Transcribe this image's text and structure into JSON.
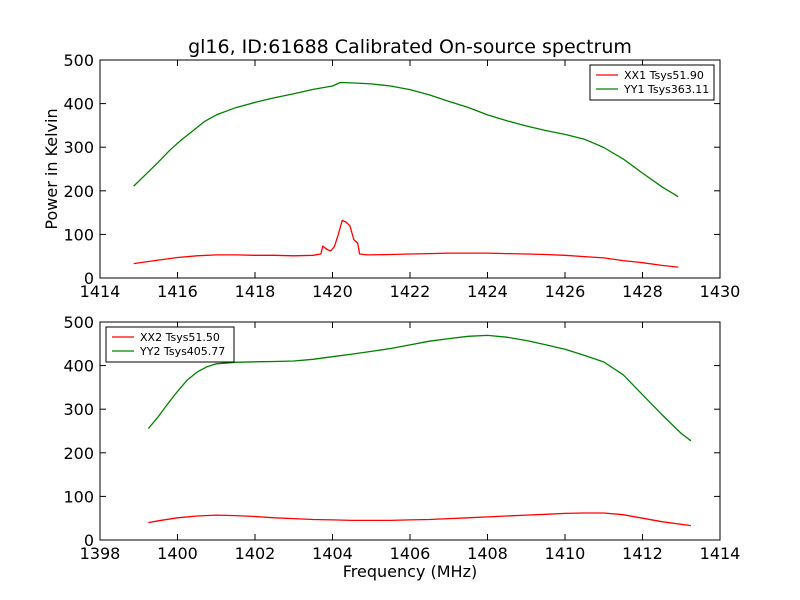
{
  "chart_data": [
    {
      "type": "line",
      "title": "gl16, ID:61688 Calibrated On-source spectrum",
      "xlabel": "",
      "ylabel": "Power in Kelvin",
      "xlim": [
        1414,
        1430
      ],
      "ylim": [
        0,
        500
      ],
      "xticks": [
        1414,
        1416,
        1418,
        1420,
        1422,
        1424,
        1426,
        1428,
        1430
      ],
      "yticks": [
        0,
        100,
        200,
        300,
        400,
        500
      ],
      "grid": false,
      "legend_position": "top-right",
      "series": [
        {
          "name": "XX1 Tsys51.90",
          "color": "#ff0000",
          "x": [
            1414.87,
            1415.5,
            1416.0,
            1416.5,
            1417.0,
            1417.5,
            1418.0,
            1418.5,
            1419.0,
            1419.5,
            1419.7,
            1419.75,
            1419.85,
            1419.95,
            1420.05,
            1420.15,
            1420.25,
            1420.35,
            1420.45,
            1420.55,
            1420.65,
            1420.7,
            1420.9,
            1421.5,
            1422.0,
            1422.5,
            1423.0,
            1423.5,
            1424.0,
            1424.5,
            1425.0,
            1425.5,
            1426.0,
            1426.5,
            1427.0,
            1427.5,
            1428.0,
            1428.5,
            1428.92
          ],
          "y": [
            33,
            41,
            47,
            51,
            53,
            53,
            52,
            52,
            51,
            52,
            55,
            73,
            66,
            62,
            72,
            100,
            132,
            128,
            120,
            88,
            80,
            55,
            53,
            54,
            55,
            56,
            57,
            57,
            57,
            56,
            55,
            54,
            52,
            49,
            46,
            40,
            35,
            29,
            25
          ]
        },
        {
          "name": "YY1 Tsys363.11",
          "color": "#008000",
          "x": [
            1414.87,
            1415.2,
            1415.5,
            1415.8,
            1416.1,
            1416.4,
            1416.7,
            1417.0,
            1417.5,
            1418.0,
            1418.5,
            1419.0,
            1419.5,
            1420.0,
            1420.2,
            1420.5,
            1421.0,
            1421.5,
            1422.0,
            1422.5,
            1423.0,
            1423.5,
            1424.0,
            1424.5,
            1425.0,
            1425.5,
            1426.0,
            1426.5,
            1427.0,
            1427.5,
            1428.0,
            1428.5,
            1428.92
          ],
          "y": [
            213,
            242,
            268,
            295,
            318,
            338,
            358,
            372,
            388,
            400,
            411,
            421,
            432,
            441,
            450,
            450,
            448,
            443,
            434,
            421,
            405,
            390,
            372,
            358,
            346,
            336,
            328,
            318,
            300,
            275,
            243,
            212,
            189
          ]
        }
      ]
    },
    {
      "type": "line",
      "title": "",
      "xlabel": "Frequency (MHz)",
      "ylabel": "",
      "xlim": [
        1398,
        1414
      ],
      "ylim": [
        0,
        500
      ],
      "xticks": [
        1398,
        1400,
        1402,
        1404,
        1406,
        1408,
        1410,
        1412,
        1414
      ],
      "yticks": [
        0,
        100,
        200,
        300,
        400,
        500
      ],
      "grid": false,
      "legend_position": "top-left",
      "series": [
        {
          "name": "XX2 Tsys51.50",
          "color": "#ff0000",
          "x": [
            1399.25,
            1399.5,
            1400.0,
            1400.5,
            1401.0,
            1401.5,
            1402.0,
            1402.5,
            1403.0,
            1403.5,
            1404.0,
            1404.5,
            1405.0,
            1405.5,
            1406.0,
            1406.5,
            1407.0,
            1407.5,
            1408.0,
            1408.5,
            1409.0,
            1409.5,
            1410.0,
            1410.5,
            1411.0,
            1411.5,
            1412.0,
            1412.5,
            1413.25
          ],
          "y": [
            40,
            44,
            51,
            55,
            57,
            56,
            54,
            51,
            49,
            47,
            46,
            45,
            45,
            45,
            46,
            47,
            49,
            51,
            53,
            55,
            57,
            59,
            61,
            62,
            62,
            58,
            50,
            42,
            33
          ]
        },
        {
          "name": "YY2 Tsys405.77",
          "color": "#008000",
          "x": [
            1399.25,
            1399.5,
            1399.75,
            1400.0,
            1400.25,
            1400.5,
            1400.75,
            1401.0,
            1401.5,
            1402.0,
            1402.5,
            1403.0,
            1403.5,
            1404.0,
            1404.5,
            1405.0,
            1405.5,
            1406.0,
            1406.5,
            1407.0,
            1407.5,
            1408.0,
            1408.5,
            1409.0,
            1409.5,
            1410.0,
            1410.5,
            1411.0,
            1411.5,
            1412.0,
            1412.5,
            1413.0,
            1413.25
          ],
          "y": [
            258,
            285,
            315,
            343,
            368,
            385,
            396,
            402,
            405,
            406,
            407,
            409,
            414,
            421,
            428,
            435,
            442,
            450,
            458,
            463,
            467,
            468,
            463,
            455,
            445,
            435,
            422,
            408,
            380,
            335,
            290,
            247,
            230
          ]
        }
      ]
    }
  ]
}
